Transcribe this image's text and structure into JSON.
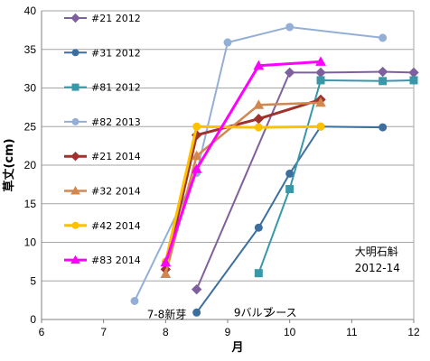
{
  "chart_data": {
    "type": "line",
    "xlabel": "月",
    "ylabel": "草丈(cm)",
    "xlim": [
      6,
      12
    ],
    "ylim": [
      0,
      40
    ],
    "xticks": [
      6,
      7,
      8,
      9,
      10,
      11,
      12
    ],
    "yticks": [
      0,
      5,
      10,
      15,
      20,
      25,
      30,
      35,
      40
    ],
    "grid": "horizontal",
    "legend_position": "top-left",
    "series": [
      {
        "name": "#21 2012",
        "color": "#7F609F",
        "marker": "diamond",
        "width": 2,
        "x": [
          8.5,
          10,
          10.5,
          11.5,
          12
        ],
        "y": [
          3.9,
          32,
          32,
          32.1,
          32
        ]
      },
      {
        "name": "#31 2012",
        "color": "#3C6F9F",
        "marker": "circle",
        "width": 2,
        "x": [
          8.5,
          9.5,
          10,
          10.5,
          11.5
        ],
        "y": [
          0.9,
          11.9,
          18.9,
          25,
          24.9
        ]
      },
      {
        "name": "#81 2012",
        "color": "#3898A8",
        "marker": "square",
        "width": 2,
        "x": [
          9.5,
          10,
          10.5,
          11.5,
          12
        ],
        "y": [
          6,
          16.9,
          31,
          30.9,
          31
        ]
      },
      {
        "name": "#82 2013",
        "color": "#94AFD6",
        "marker": "circle",
        "width": 2,
        "x": [
          7.5,
          8.5,
          9,
          10,
          11.5
        ],
        "y": [
          2.4,
          19,
          35.9,
          37.9,
          36.5
        ]
      },
      {
        "name": "#21 2014",
        "color": "#A0322E",
        "marker": "diamond",
        "width": 3,
        "x": [
          8,
          8.5,
          9.5,
          10.5
        ],
        "y": [
          6.5,
          23.9,
          26,
          28.5
        ]
      },
      {
        "name": "#32 2014",
        "color": "#D2874E",
        "marker": "triangle",
        "width": 2.5,
        "x": [
          8,
          8.5,
          9.5,
          10.5
        ],
        "y": [
          5.9,
          21.2,
          27.8,
          28.1
        ]
      },
      {
        "name": "#42 2014",
        "color": "#FFC000",
        "marker": "circle",
        "width": 3,
        "x": [
          8,
          8.5,
          9.5,
          10.5
        ],
        "y": [
          7.5,
          25,
          24.9,
          25
        ]
      },
      {
        "name": "#83 2014",
        "color": "#FF00FF",
        "marker": "triangle",
        "width": 3,
        "x": [
          8,
          8.5,
          9.5,
          10.5
        ],
        "y": [
          7.4,
          19.5,
          32.9,
          33.4
        ]
      }
    ],
    "annotations": [
      {
        "text": "大明石斛",
        "x": 11.05,
        "y": 8.3
      },
      {
        "text": "2012-14",
        "x": 11.05,
        "y": 6.2
      },
      {
        "text": "7-8新芽",
        "x": 7.7,
        "y": 0.2,
        "color": "#0000CC"
      },
      {
        "text": "9バルブ",
        "x": 9.1,
        "y": 0.4,
        "color": "#000000"
      },
      {
        "text": "シース",
        "x": 9.6,
        "y": 0.4,
        "color": "#9900CC"
      }
    ]
  }
}
